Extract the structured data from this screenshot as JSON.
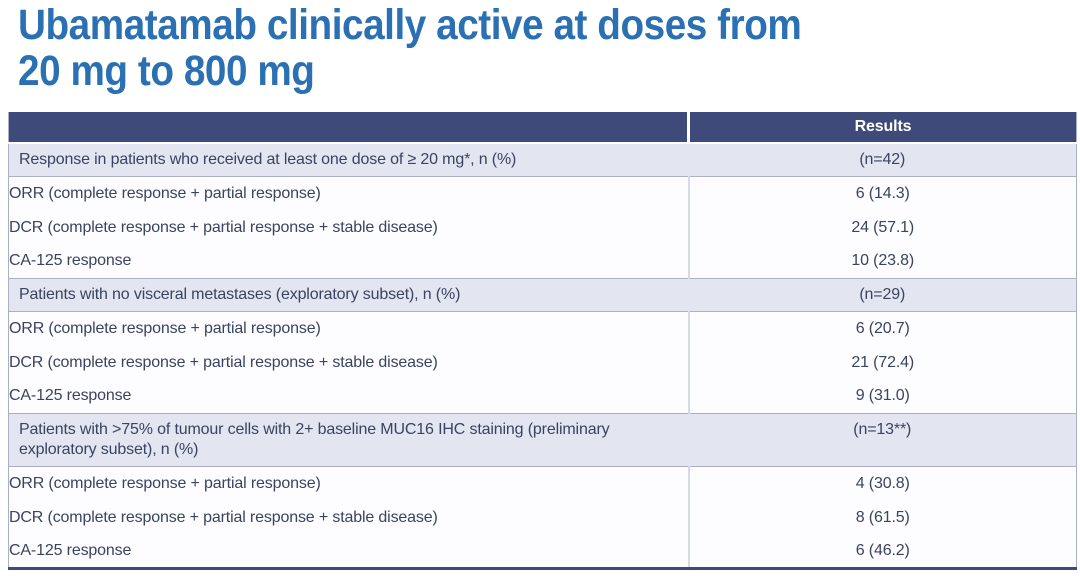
{
  "title": {
    "line1": "Ubamatamab clinically active at doses from",
    "line2": "20 mg to 800 mg"
  },
  "table": {
    "header": {
      "results_label": "Results"
    },
    "sections": [
      {
        "label": "Response in patients who received at least one dose of ≥ 20 mg*, n (%)",
        "n": "(n=42)",
        "rows": [
          {
            "label": "ORR (complete response + partial response)",
            "value": "6 (14.3)"
          },
          {
            "label": "DCR (complete response + partial response + stable disease)",
            "value": "24 (57.1)"
          },
          {
            "label": "CA-125 response",
            "value": "10 (23.8)"
          }
        ]
      },
      {
        "label": "Patients with no visceral metastases (exploratory subset), n (%)",
        "n": "(n=29)",
        "rows": [
          {
            "label": "ORR (complete response + partial response)",
            "value": "6 (20.7)"
          },
          {
            "label": "DCR (complete response + partial response + stable disease)",
            "value": "21 (72.4)"
          },
          {
            "label": "CA-125 response",
            "value": "9 (31.0)"
          }
        ]
      },
      {
        "label": "Patients with >75% of tumour cells with 2+ baseline MUC16 IHC staining (preliminary\nexploratory subset), n (%)",
        "n": "(n=13**)",
        "rows": [
          {
            "label": "ORR (complete response + partial response)",
            "value": "4 (30.8)"
          },
          {
            "label": "DCR (complete response + partial response + stable disease)",
            "value": "8 (61.5)"
          },
          {
            "label": "CA-125 response",
            "value": "6 (46.2)"
          }
        ]
      }
    ]
  },
  "colors": {
    "title_blue": "#2b70b2",
    "header_navy": "#3e4a7a",
    "section_row_bg": "#e3e5f0",
    "data_row_bg": "#fdfdff",
    "border_light": "#a9b0c4",
    "column_divider": "#d6dae6",
    "body_text": "#3a4360"
  }
}
